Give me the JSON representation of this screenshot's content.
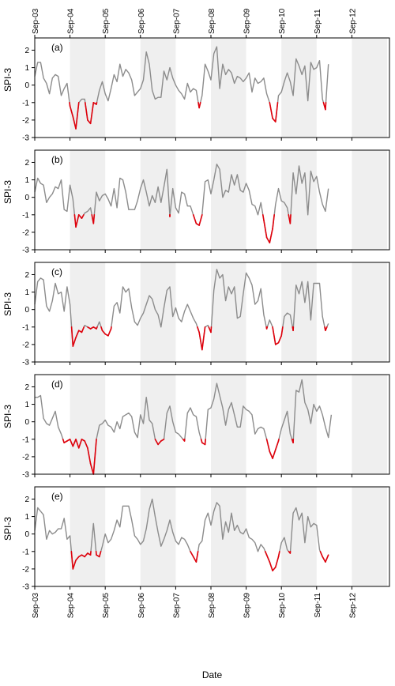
{
  "colors": {
    "line": "#8c8c8c",
    "drought": "#e0000b",
    "shade": "#efefef",
    "frame": "#000000"
  },
  "chart_data": {
    "type": "line",
    "x_axis_label": "Date",
    "y_axis_label": "SPI-3",
    "x_tick_labels": [
      "Sep-03",
      "Sep-04",
      "Sep-05",
      "Sep-06",
      "Sep-07",
      "Sep-08",
      "Sep-09",
      "Sep-10",
      "Sep-11",
      "Sep-12"
    ],
    "ylim": [
      -3,
      2.7
    ],
    "y_ticks": [
      -3,
      -2,
      -1,
      0,
      1,
      2
    ],
    "y_tick_labels": [
      "-3",
      "-2",
      "-1",
      "0",
      "1",
      "2"
    ],
    "shaded_year_intervals": [
      [
        1,
        2
      ],
      [
        3,
        4
      ],
      [
        5,
        6
      ],
      [
        7,
        8
      ],
      [
        9,
        10
      ]
    ],
    "drought_threshold": -1,
    "x_start": "Sep-03",
    "x_step_months": 1,
    "panels": [
      {
        "label": "(a)",
        "values": [
          0.5,
          1.3,
          1.3,
          0.4,
          0.1,
          -0.5,
          0.4,
          0.6,
          0.5,
          -0.6,
          -0.2,
          0.1,
          -1.2,
          -1.8,
          -2.5,
          -1.0,
          -0.8,
          -0.8,
          -2.0,
          -2.2,
          -1.0,
          -1.1,
          -0.3,
          0.2,
          -0.5,
          -0.9,
          -0.2,
          0.6,
          0.2,
          1.2,
          0.5,
          0.9,
          0.7,
          0.3,
          -0.6,
          -0.4,
          -0.2,
          0.3,
          1.9,
          1.2,
          -0.3,
          -0.8,
          -0.7,
          -0.7,
          0.8,
          0.3,
          1.0,
          0.4,
          0.0,
          -0.3,
          -0.5,
          -0.8,
          0.1,
          -0.4,
          -0.2,
          -0.3,
          -1.3,
          -0.6,
          1.2,
          0.8,
          0.3,
          1.8,
          2.2,
          -0.2,
          1.2,
          0.6,
          0.9,
          0.7,
          0.1,
          0.5,
          0.4,
          0.2,
          0.4,
          0.7,
          -0.4,
          0.4,
          0.1,
          0.2,
          0.4,
          -0.5,
          -1.0,
          -1.9,
          -2.1,
          -0.6,
          -0.4,
          0.2,
          0.7,
          0.2,
          -0.6,
          1.5,
          1.1,
          0.6,
          1.1,
          -0.9,
          1.3,
          0.9,
          1.0,
          1.4,
          -0.8,
          -1.4,
          1.2
        ]
      },
      {
        "label": "(b)",
        "values": [
          0.3,
          1.1,
          0.8,
          0.7,
          -0.3,
          0.0,
          0.2,
          0.6,
          0.5,
          1.0,
          -0.7,
          -0.8,
          0.7,
          -0.1,
          -1.7,
          -1.0,
          -1.2,
          -0.9,
          -0.8,
          -0.6,
          -1.5,
          0.3,
          -0.2,
          0.1,
          0.2,
          -0.1,
          -0.5,
          0.5,
          -0.6,
          1.1,
          1.0,
          0.3,
          -0.7,
          -0.7,
          -0.7,
          -0.2,
          0.5,
          1.0,
          0.3,
          -0.5,
          0.1,
          -0.3,
          0.6,
          -0.3,
          0.6,
          1.6,
          -1.1,
          0.5,
          -0.6,
          -0.9,
          0.3,
          0.2,
          -0.5,
          -0.5,
          -1.0,
          -1.5,
          -1.6,
          -1.0,
          0.9,
          1.0,
          0.2,
          1.0,
          1.9,
          1.6,
          0.0,
          0.4,
          0.3,
          1.3,
          0.7,
          1.3,
          0.4,
          0.3,
          0.8,
          0.4,
          -0.4,
          -0.5,
          -1.0,
          -0.3,
          -1.3,
          -2.3,
          -2.6,
          -1.8,
          -0.4,
          0.5,
          -0.2,
          -0.3,
          -0.6,
          -1.5,
          1.4,
          0.2,
          1.8,
          0.8,
          1.4,
          -1.0,
          1.5,
          0.9,
          1.2,
          0.3,
          -0.4,
          -0.8,
          0.5
        ]
      },
      {
        "label": "(c)",
        "values": [
          0.3,
          1.6,
          1.8,
          1.7,
          0.2,
          -0.1,
          0.5,
          1.5,
          0.9,
          1.0,
          -0.1,
          1.3,
          0.3,
          -2.1,
          -1.6,
          -1.2,
          -1.3,
          -0.9,
          -1.0,
          -1.1,
          -1.0,
          -1.1,
          -0.7,
          -1.2,
          -1.4,
          -1.5,
          -1.1,
          0.2,
          0.4,
          -0.2,
          1.3,
          1.0,
          1.2,
          0.1,
          -0.7,
          -0.9,
          -0.5,
          -0.2,
          0.3,
          0.8,
          0.6,
          0.0,
          -0.3,
          -1.0,
          0.1,
          1.1,
          1.3,
          -0.4,
          0.1,
          -0.5,
          -0.7,
          -0.1,
          0.3,
          -0.1,
          -0.5,
          -0.8,
          -1.3,
          -2.3,
          -1.0,
          -0.9,
          -1.3,
          1.1,
          2.3,
          1.8,
          2.0,
          0.5,
          1.3,
          0.9,
          1.3,
          -0.5,
          -0.4,
          0.9,
          2.1,
          1.8,
          1.4,
          0.3,
          0.5,
          1.2,
          -0.3,
          -1.1,
          -0.6,
          -1.0,
          -2.0,
          -1.9,
          -1.5,
          -0.4,
          -0.2,
          -0.3,
          -1.2,
          1.4,
          0.9,
          1.6,
          0.4,
          1.6,
          -0.6,
          1.5,
          1.5,
          1.5,
          -0.4,
          -1.2,
          -0.8
        ]
      },
      {
        "label": "(d)",
        "values": [
          1.4,
          1.4,
          1.5,
          0.2,
          -0.1,
          -0.2,
          0.2,
          0.6,
          -0.3,
          -0.7,
          -1.2,
          -1.1,
          -1.0,
          -1.4,
          -1.0,
          -1.5,
          -1.0,
          -1.1,
          -1.5,
          -2.4,
          -3.0,
          -1.0,
          -0.2,
          -0.1,
          0.1,
          -0.2,
          -0.3,
          -0.6,
          0.0,
          -0.4,
          0.3,
          0.4,
          0.5,
          0.3,
          -0.6,
          -0.9,
          0.4,
          -0.1,
          1.4,
          0.1,
          -0.1,
          -1.0,
          -1.3,
          -1.1,
          -1.0,
          0.5,
          0.9,
          0.0,
          -0.6,
          -0.7,
          -0.9,
          -1.1,
          0.5,
          0.8,
          0.4,
          0.3,
          -0.6,
          -1.2,
          -1.3,
          0.7,
          0.8,
          1.3,
          2.2,
          1.5,
          0.8,
          -0.2,
          0.7,
          1.1,
          0.4,
          -0.3,
          -0.3,
          0.9,
          0.7,
          0.6,
          0.4,
          -0.7,
          -0.4,
          -0.3,
          -0.4,
          -1.0,
          -1.7,
          -2.1,
          -1.6,
          -1.1,
          -0.4,
          0.1,
          0.6,
          -0.7,
          -1.2,
          1.8,
          1.7,
          2.4,
          1.1,
          0.7,
          -0.1,
          1.0,
          0.6,
          0.9,
          0.4,
          -0.3,
          -0.9,
          0.4
        ]
      },
      {
        "label": "(e)",
        "values": [
          0.2,
          1.5,
          1.3,
          1.1,
          -0.3,
          0.2,
          0.0,
          0.1,
          0.3,
          0.3,
          0.9,
          -0.3,
          -0.1,
          -2.0,
          -1.5,
          -1.3,
          -1.2,
          -1.3,
          -1.1,
          -1.2,
          0.6,
          -1.2,
          -1.3,
          -0.7,
          0.0,
          -0.5,
          -0.3,
          0.2,
          0.8,
          0.4,
          1.6,
          1.6,
          1.6,
          0.8,
          -0.1,
          -0.3,
          -0.6,
          -0.4,
          0.3,
          1.4,
          2.0,
          1.0,
          0.1,
          -0.7,
          -0.3,
          0.2,
          0.8,
          0.1,
          -0.4,
          -0.6,
          -0.2,
          -0.3,
          -0.6,
          -1.0,
          -1.3,
          -1.6,
          -0.6,
          -0.4,
          0.8,
          1.2,
          0.5,
          1.3,
          1.8,
          1.6,
          -0.3,
          0.7,
          0.1,
          1.2,
          0.2,
          0.5,
          0.1,
          0.0,
          0.3,
          -0.2,
          -0.3,
          -0.5,
          -1.0,
          -0.6,
          -0.8,
          -1.2,
          -1.6,
          -2.1,
          -1.9,
          -1.3,
          -0.5,
          -0.2,
          -0.9,
          -1.1,
          1.2,
          1.5,
          0.8,
          1.2,
          -0.5,
          1.0,
          0.4,
          0.6,
          0.5,
          -0.9,
          -1.3,
          -1.6,
          -1.2
        ]
      }
    ]
  }
}
